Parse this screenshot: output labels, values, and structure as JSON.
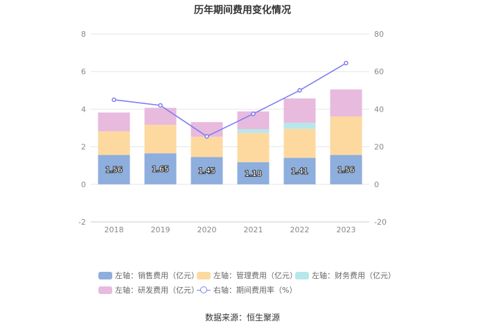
{
  "title": "历年期间费用变化情况",
  "source": "数据来源：恒生聚源",
  "chart_data": {
    "type": "bar",
    "stacked": true,
    "categories": [
      "2018",
      "2019",
      "2020",
      "2021",
      "2022",
      "2023"
    ],
    "left_axis": {
      "min": -2,
      "max": 8,
      "ticks": [
        "-2",
        "0",
        "2",
        "4",
        "6",
        "8"
      ]
    },
    "right_axis": {
      "min": -20,
      "max": 80,
      "ticks": [
        "-20",
        "0",
        "20",
        "40",
        "60",
        "80"
      ]
    },
    "series": [
      {
        "name": "左轴：销售费用（亿元）",
        "color": "#8eaedd",
        "values": [
          1.56,
          1.65,
          1.45,
          1.18,
          1.41,
          1.56
        ],
        "labels": [
          "1.56",
          "1.65",
          "1.45",
          "1.18",
          "1.41",
          "1.56"
        ]
      },
      {
        "name": "左轴：管理费用（亿元）",
        "color": "#fdd9a0",
        "values": [
          1.26,
          1.52,
          1.08,
          1.55,
          1.54,
          2.05
        ]
      },
      {
        "name": "左轴：财务费用（亿元）",
        "color": "#b6e8ea",
        "values": [
          0,
          0,
          0,
          0.2,
          0.32,
          0
        ]
      },
      {
        "name": "左轴：研发费用（亿元）",
        "color": "#e8bade",
        "values": [
          1.0,
          0.9,
          0.78,
          0.95,
          1.3,
          1.44
        ]
      }
    ],
    "line": {
      "name": "右轴：期间费用率（%）",
      "color": "#7b7df0",
      "values": [
        45,
        42,
        25.5,
        37.5,
        50,
        64.5
      ]
    }
  }
}
